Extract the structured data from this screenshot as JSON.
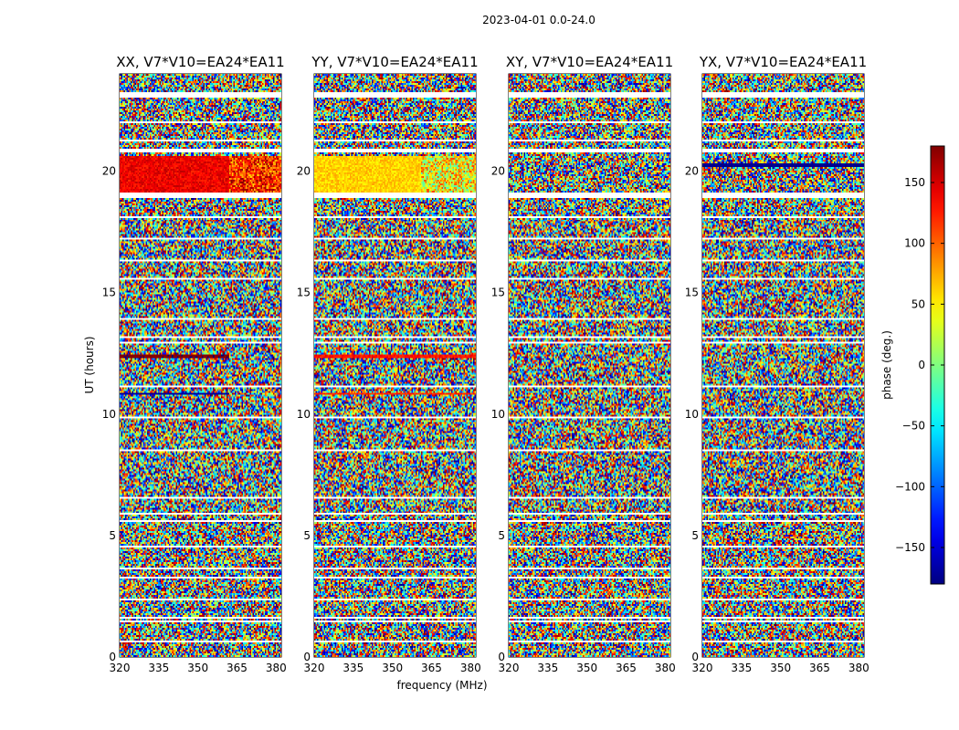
{
  "figure": {
    "suptitle": "2023-04-01 0.0-24.0",
    "xlabel": "frequency (MHz)",
    "ylabel": "UT (hours)",
    "colorbar_label": "phase (deg.)"
  },
  "chart_data": {
    "type": "heatmap",
    "title": "2023-04-01 0.0-24.0",
    "xlabel": "frequency (MHz)",
    "ylabel": "UT (hours)",
    "xlim": [
      320,
      382
    ],
    "ylim": [
      0,
      24
    ],
    "xticks": [
      320,
      335,
      350,
      365,
      380
    ],
    "xtick_labels": [
      "320",
      "335",
      "350",
      "365",
      "380"
    ],
    "yticks": [
      0,
      5,
      10,
      15,
      20
    ],
    "ytick_labels": [
      "0",
      "5",
      "10",
      "15",
      "20"
    ],
    "colorbar": {
      "label": "phase (deg.)",
      "range": [
        -180,
        180
      ],
      "ticks": [
        150,
        100,
        50,
        0,
        -50,
        -100,
        -150
      ],
      "tick_labels": [
        "150",
        "100",
        "50",
        "0",
        "−50",
        "−100",
        "−150"
      ],
      "colormap": "jet"
    },
    "panels": [
      {
        "title": "XX, V7*V10=EA24*EA11",
        "polarization": "XX",
        "coherent_bands": [
          {
            "t0": 19.15,
            "t1": 20.6,
            "f0": 320,
            "f1": 362,
            "phase": 140,
            "spread": 20
          },
          {
            "t0": 19.15,
            "t1": 20.6,
            "f0": 362,
            "f1": 382,
            "phase": 120,
            "spread": 60
          },
          {
            "t0": 12.3,
            "t1": 12.45,
            "f0": 320,
            "f1": 362,
            "phase": 178,
            "spread": 3
          },
          {
            "t0": 10.8,
            "t1": 10.9,
            "f0": 320,
            "f1": 362,
            "phase": -170,
            "spread": 5
          }
        ]
      },
      {
        "title": "YY, V7*V10=EA24*EA11",
        "polarization": "YY",
        "coherent_bands": [
          {
            "t0": 19.15,
            "t1": 20.6,
            "f0": 320,
            "f1": 361,
            "phase": 60,
            "spread": 18
          },
          {
            "t0": 19.15,
            "t1": 20.6,
            "f0": 361,
            "f1": 382,
            "phase": 45,
            "spread": 70
          },
          {
            "t0": 12.3,
            "t1": 12.45,
            "f0": 320,
            "f1": 382,
            "phase": 130,
            "spread": 15
          },
          {
            "t0": 10.8,
            "t1": 10.9,
            "f0": 320,
            "f1": 382,
            "phase": 120,
            "spread": 15
          }
        ]
      },
      {
        "title": "XY, V7*V10=EA24*EA11",
        "polarization": "XY",
        "coherent_bands": []
      },
      {
        "title": "YX, V7*V10=EA24*EA11",
        "polarization": "YX",
        "coherent_bands": [
          {
            "t0": 20.2,
            "t1": 20.3,
            "f0": 320,
            "f1": 382,
            "phase": -175,
            "spread": 5
          }
        ]
      }
    ],
    "flagged_time_gaps_hours": [
      [
        23.05,
        23.25
      ],
      [
        22.0,
        22.05
      ],
      [
        21.25,
        21.3
      ],
      [
        20.75,
        20.9
      ],
      [
        18.9,
        19.15
      ],
      [
        18.05,
        18.15
      ],
      [
        17.9,
        17.95
      ],
      [
        17.2,
        17.25
      ],
      [
        16.3,
        16.35
      ],
      [
        15.55,
        15.6
      ],
      [
        14.6,
        14.65
      ],
      [
        13.9,
        13.95
      ],
      [
        13.1,
        13.2
      ],
      [
        12.9,
        12.95
      ],
      [
        12.5,
        12.55
      ],
      [
        11.9,
        11.95
      ],
      [
        11.1,
        11.15
      ],
      [
        10.55,
        10.6
      ],
      [
        9.85,
        9.9
      ],
      [
        9.35,
        9.4
      ],
      [
        8.5,
        8.55
      ],
      [
        8.0,
        8.05
      ],
      [
        7.1,
        7.15
      ],
      [
        6.55,
        6.6
      ],
      [
        5.85,
        5.9
      ],
      [
        5.55,
        5.65
      ],
      [
        4.5,
        4.55
      ],
      [
        3.6,
        3.7
      ],
      [
        3.25,
        3.3
      ],
      [
        2.35,
        2.4
      ],
      [
        1.6,
        1.65
      ],
      [
        1.45,
        1.5
      ],
      [
        0.6,
        0.65
      ]
    ]
  }
}
